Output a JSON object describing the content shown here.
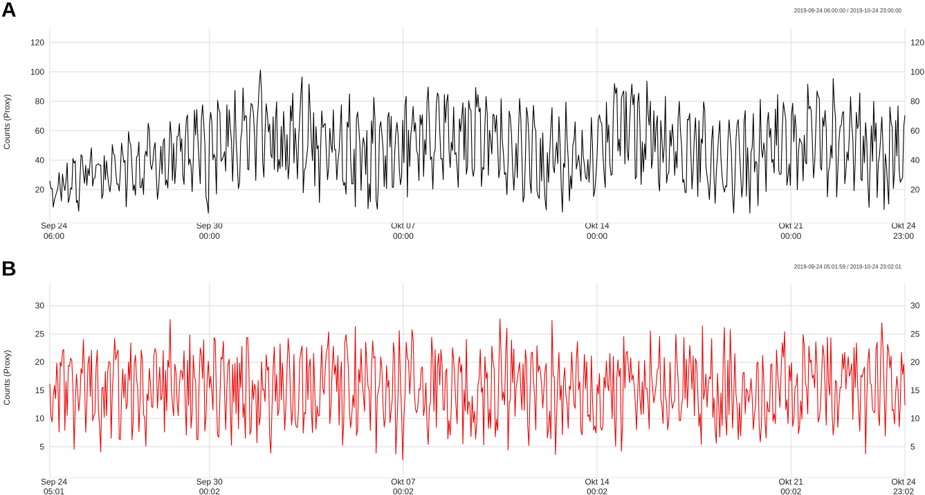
{
  "panels": [
    {
      "letter": "A",
      "range_label": "2019-09-24 06:00:00 / 2019-10-24 23:00:00"
    },
    {
      "letter": "B",
      "range_label": "2019-09-24 05:01:59 / 2019-10-24 23:02:01"
    }
  ],
  "chart_data": [
    {
      "type": "line",
      "title": "",
      "ylabel": "Counts (Proxy)",
      "ylim": [
        2,
        130
      ],
      "yticks": [
        20,
        40,
        60,
        80,
        100,
        120
      ],
      "color": "#000000",
      "grid": true,
      "xticks": [
        {
          "label1": "Sep 24",
          "label2": "06:00",
          "pos": 0.0
        },
        {
          "label1": "Sep 30",
          "label2": "00:00",
          "pos": 0.1867
        },
        {
          "label1": "Okt 07",
          "label2": "00:00",
          "pos": 0.4133
        },
        {
          "label1": "Okt 14",
          "label2": "00:00",
          "pos": 0.64
        },
        {
          "label1": "Okt 21",
          "label2": "00:00",
          "pos": 0.8667
        },
        {
          "label1": "Okt 24",
          "label2": "23:00",
          "pos": 1.0
        }
      ],
      "seed": 7
    },
    {
      "type": "line",
      "title": "",
      "ylabel": "Counts (Proxy)",
      "ylim": [
        0.5,
        34
      ],
      "yticks": [
        5,
        10,
        15,
        20,
        25,
        30
      ],
      "color": "#ee0000",
      "grid": true,
      "xticks": [
        {
          "label1": "Sep 24",
          "label2": "05:01",
          "pos": 0.0
        },
        {
          "label1": "Sep 30",
          "label2": "00:02",
          "pos": 0.1867
        },
        {
          "label1": "Okt 07",
          "label2": "00:02",
          "pos": 0.4133
        },
        {
          "label1": "Okt 14",
          "label2": "00:02",
          "pos": 0.64
        },
        {
          "label1": "Okt 21",
          "label2": "00:02",
          "pos": 0.8667
        },
        {
          "label1": "Okt 24",
          "label2": "23:02",
          "pos": 1.0
        }
      ],
      "seed": 19
    }
  ]
}
